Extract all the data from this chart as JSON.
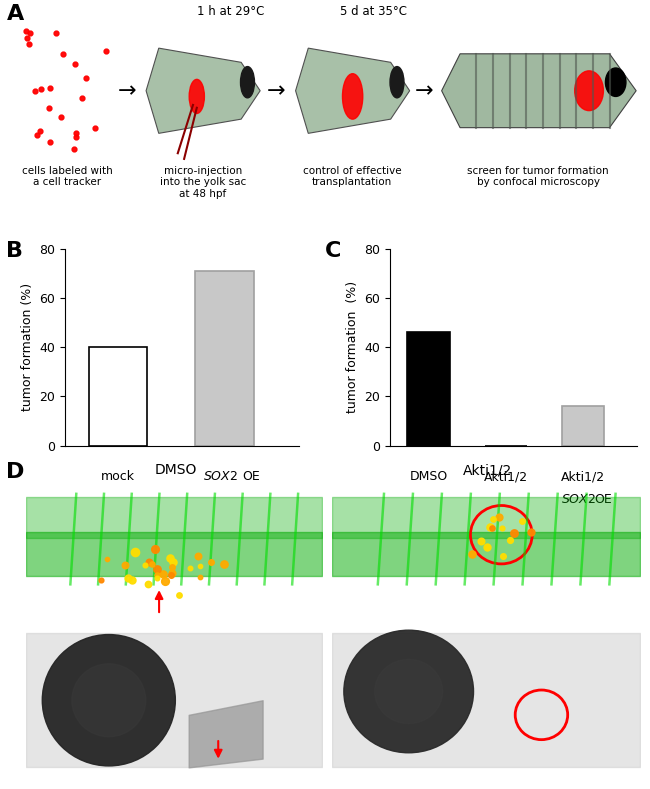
{
  "panel_A_label": "A",
  "panel_B_label": "B",
  "panel_C_label": "C",
  "panel_D_label": "D",
  "panel_B": {
    "values": [
      40,
      71
    ],
    "colors": [
      "white",
      "#c8c8c8"
    ],
    "edgecolors": [
      "black",
      "#a0a0a0"
    ],
    "ylabel": "tumor formation (%)",
    "ylim": [
      0,
      80
    ],
    "yticks": [
      0,
      20,
      40,
      60,
      80
    ]
  },
  "panel_C": {
    "values": [
      46,
      0,
      16
    ],
    "colors": [
      "black",
      "black",
      "#c8c8c8"
    ],
    "edgecolors": [
      "black",
      "black",
      "#a0a0a0"
    ],
    "ylabel": "tumor formation  (%)",
    "ylim": [
      0,
      80
    ],
    "yticks": [
      0,
      20,
      40,
      60,
      80
    ]
  },
  "panel_D_titles": [
    "DMSO",
    "Akti1/2"
  ],
  "panel_A_texts": {
    "title1": "1 h at 29°C",
    "title2": "5 d at 35°C",
    "caption1": "cells labeled with\na cell tracker",
    "caption2": "micro-injection\ninto the yolk sac\nat 48 hpf",
    "caption3": "control of effective\ntransplantation",
    "caption4": "screen for tumor formation\nby confocal microscopy"
  },
  "bg_color": "white",
  "text_color": "black",
  "label_fontsize": 16,
  "tick_fontsize": 9,
  "axis_label_fontsize": 9,
  "caption_fontsize": 7.5,
  "panel_title_fontsize": 10
}
